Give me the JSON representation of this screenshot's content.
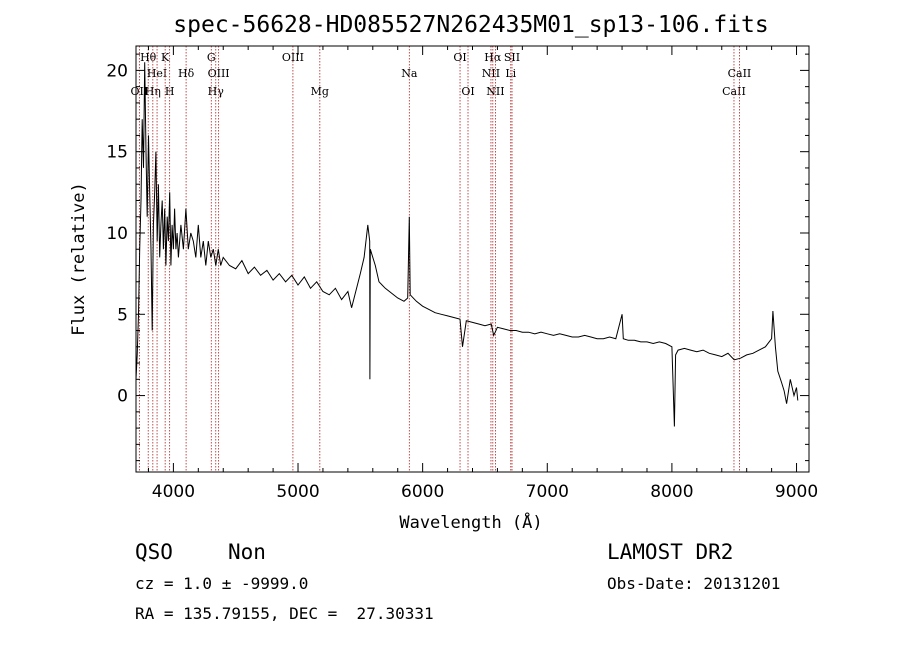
{
  "chart_data": {
    "type": "line",
    "title": "spec-56628-HD085527N262435M01_sp13-106.fits",
    "xlabel": "Wavelength (Å)",
    "ylabel": "Flux (relative)",
    "xlim": [
      3700,
      9100
    ],
    "ylim": [
      -4.7,
      21.5
    ],
    "x_ticks": [
      4000,
      5000,
      6000,
      7000,
      8000,
      9000
    ],
    "y_ticks": [
      0,
      5,
      10,
      15,
      20
    ],
    "series": [
      {
        "values": [
          [
            3700,
            1.0
          ],
          [
            3710,
            2.5
          ],
          [
            3720,
            5.0
          ],
          [
            3730,
            9.0
          ],
          [
            3740,
            12.0
          ],
          [
            3750,
            17.0
          ],
          [
            3760,
            14.0
          ],
          [
            3770,
            20.5
          ],
          [
            3780,
            15.0
          ],
          [
            3790,
            11.0
          ],
          [
            3800,
            16.0
          ],
          [
            3810,
            12.5
          ],
          [
            3820,
            9.0
          ],
          [
            3830,
            4.0
          ],
          [
            3840,
            10.5
          ],
          [
            3850,
            12.5
          ],
          [
            3860,
            15.0
          ],
          [
            3870,
            9.5
          ],
          [
            3880,
            13.0
          ],
          [
            3890,
            8.5
          ],
          [
            3900,
            10.5
          ],
          [
            3910,
            12.0
          ],
          [
            3920,
            9.0
          ],
          [
            3930,
            11.5
          ],
          [
            3940,
            8.0
          ],
          [
            3950,
            11.0
          ],
          [
            3960,
            9.5
          ],
          [
            3970,
            12.5
          ],
          [
            3980,
            8.0
          ],
          [
            3990,
            10.5
          ],
          [
            4000,
            9.0
          ],
          [
            4010,
            11.5
          ],
          [
            4020,
            9.0
          ],
          [
            4030,
            10.0
          ],
          [
            4040,
            8.5
          ],
          [
            4060,
            10.5
          ],
          [
            4080,
            9.0
          ],
          [
            4100,
            11.5
          ],
          [
            4120,
            9.0
          ],
          [
            4140,
            10.0
          ],
          [
            4160,
            9.5
          ],
          [
            4180,
            8.5
          ],
          [
            4200,
            10.5
          ],
          [
            4220,
            8.5
          ],
          [
            4240,
            9.5
          ],
          [
            4260,
            8.0
          ],
          [
            4280,
            9.5
          ],
          [
            4300,
            8.5
          ],
          [
            4320,
            9.0
          ],
          [
            4340,
            8.0
          ],
          [
            4360,
            9.0
          ],
          [
            4380,
            8.0
          ],
          [
            4400,
            8.5
          ],
          [
            4450,
            8.0
          ],
          [
            4500,
            7.8
          ],
          [
            4550,
            8.3
          ],
          [
            4600,
            7.5
          ],
          [
            4650,
            7.9
          ],
          [
            4700,
            7.4
          ],
          [
            4750,
            7.7
          ],
          [
            4800,
            7.1
          ],
          [
            4850,
            7.5
          ],
          [
            4900,
            7.0
          ],
          [
            4950,
            7.4
          ],
          [
            5000,
            6.8
          ],
          [
            5050,
            7.3
          ],
          [
            5100,
            6.6
          ],
          [
            5150,
            7.0
          ],
          [
            5200,
            6.4
          ],
          [
            5250,
            6.2
          ],
          [
            5300,
            6.6
          ],
          [
            5350,
            5.9
          ],
          [
            5400,
            6.4
          ],
          [
            5430,
            5.4
          ],
          [
            5450,
            6.0
          ],
          [
            5500,
            7.5
          ],
          [
            5530,
            8.5
          ],
          [
            5560,
            10.5
          ],
          [
            5575,
            9.5
          ],
          [
            5577,
            1.0
          ],
          [
            5580,
            9.0
          ],
          [
            5600,
            8.5
          ],
          [
            5620,
            8.0
          ],
          [
            5650,
            7.0
          ],
          [
            5700,
            6.6
          ],
          [
            5750,
            6.3
          ],
          [
            5800,
            6.0
          ],
          [
            5850,
            5.8
          ],
          [
            5880,
            6.0
          ],
          [
            5893,
            11.0
          ],
          [
            5900,
            6.2
          ],
          [
            5950,
            5.8
          ],
          [
            6000,
            5.5
          ],
          [
            6050,
            5.3
          ],
          [
            6100,
            5.1
          ],
          [
            6150,
            5.0
          ],
          [
            6200,
            4.9
          ],
          [
            6250,
            4.8
          ],
          [
            6300,
            4.7
          ],
          [
            6320,
            3.0
          ],
          [
            6350,
            4.6
          ],
          [
            6400,
            4.5
          ],
          [
            6450,
            4.4
          ],
          [
            6500,
            4.3
          ],
          [
            6550,
            4.4
          ],
          [
            6570,
            3.7
          ],
          [
            6600,
            4.2
          ],
          [
            6650,
            4.1
          ],
          [
            6700,
            4.0
          ],
          [
            6750,
            4.0
          ],
          [
            6800,
            3.9
          ],
          [
            6850,
            3.9
          ],
          [
            6900,
            3.8
          ],
          [
            6950,
            3.9
          ],
          [
            7000,
            3.8
          ],
          [
            7050,
            3.7
          ],
          [
            7100,
            3.8
          ],
          [
            7150,
            3.7
          ],
          [
            7200,
            3.6
          ],
          [
            7250,
            3.6
          ],
          [
            7300,
            3.7
          ],
          [
            7350,
            3.6
          ],
          [
            7400,
            3.5
          ],
          [
            7450,
            3.5
          ],
          [
            7500,
            3.6
          ],
          [
            7550,
            3.5
          ],
          [
            7600,
            5.0
          ],
          [
            7610,
            3.5
          ],
          [
            7650,
            3.4
          ],
          [
            7700,
            3.4
          ],
          [
            7750,
            3.3
          ],
          [
            7800,
            3.3
          ],
          [
            7850,
            3.2
          ],
          [
            7900,
            3.3
          ],
          [
            7950,
            3.2
          ],
          [
            8000,
            3.0
          ],
          [
            8020,
            -1.9
          ],
          [
            8030,
            2.5
          ],
          [
            8050,
            2.8
          ],
          [
            8100,
            2.9
          ],
          [
            8150,
            2.8
          ],
          [
            8200,
            2.7
          ],
          [
            8250,
            2.8
          ],
          [
            8300,
            2.6
          ],
          [
            8350,
            2.5
          ],
          [
            8400,
            2.4
          ],
          [
            8450,
            2.6
          ],
          [
            8500,
            2.2
          ],
          [
            8550,
            2.3
          ],
          [
            8600,
            2.5
          ],
          [
            8650,
            2.6
          ],
          [
            8700,
            2.8
          ],
          [
            8750,
            3.0
          ],
          [
            8800,
            3.5
          ],
          [
            8810,
            5.2
          ],
          [
            8830,
            3.0
          ],
          [
            8850,
            1.5
          ],
          [
            8880,
            0.8
          ],
          [
            8900,
            0.3
          ],
          [
            8920,
            -0.5
          ],
          [
            8950,
            1.0
          ],
          [
            8980,
            0.0
          ],
          [
            9000,
            0.5
          ],
          [
            9010,
            -0.3
          ]
        ]
      }
    ],
    "lines": [
      {
        "wave": 3727,
        "label": "OII",
        "row": 3
      },
      {
        "wave": 3798,
        "label": "Hθ",
        "row": 1
      },
      {
        "wave": 3835,
        "label": "Hη",
        "row": 3
      },
      {
        "wave": 3869,
        "label": "HeI",
        "row": 2
      },
      {
        "wave": 3934,
        "label": "K",
        "row": 1
      },
      {
        "wave": 3970,
        "label": "H",
        "row": 3
      },
      {
        "wave": 4102,
        "label": "Hδ",
        "row": 2
      },
      {
        "wave": 4304,
        "label": "G",
        "row": 1
      },
      {
        "wave": 4340,
        "label": "Hγ",
        "row": 3
      },
      {
        "wave": 4363,
        "label": "OIII",
        "row": 2
      },
      {
        "wave": 4959,
        "label": "OIII",
        "row": 1
      },
      {
        "wave": 5175,
        "label": "Mg",
        "row": 3
      },
      {
        "wave": 5893,
        "label": "Na",
        "row": 2
      },
      {
        "wave": 6300,
        "label": "OI",
        "row": 1
      },
      {
        "wave": 6364,
        "label": "OI",
        "row": 3
      },
      {
        "wave": 6548,
        "label": "NII",
        "row": 2
      },
      {
        "wave": 6563,
        "label": "Hα",
        "row": 1
      },
      {
        "wave": 6584,
        "label": "NII",
        "row": 3
      },
      {
        "wave": 6707,
        "label": "Li",
        "row": 2
      },
      {
        "wave": 6717,
        "label": "SII",
        "row": 1
      },
      {
        "wave": 8498,
        "label": "CaII",
        "row": 3
      },
      {
        "wave": 8542,
        "label": "CaII",
        "row": 2
      }
    ],
    "grid": false
  },
  "info": {
    "class": "QSO",
    "subclass": "Non",
    "survey": "LAMOST DR2",
    "cz": "cz = 1.0 ± -9999.0",
    "obs_date": "Obs-Date: 20131201",
    "coords": "RA = 135.79155, DEC =  27.30331"
  }
}
